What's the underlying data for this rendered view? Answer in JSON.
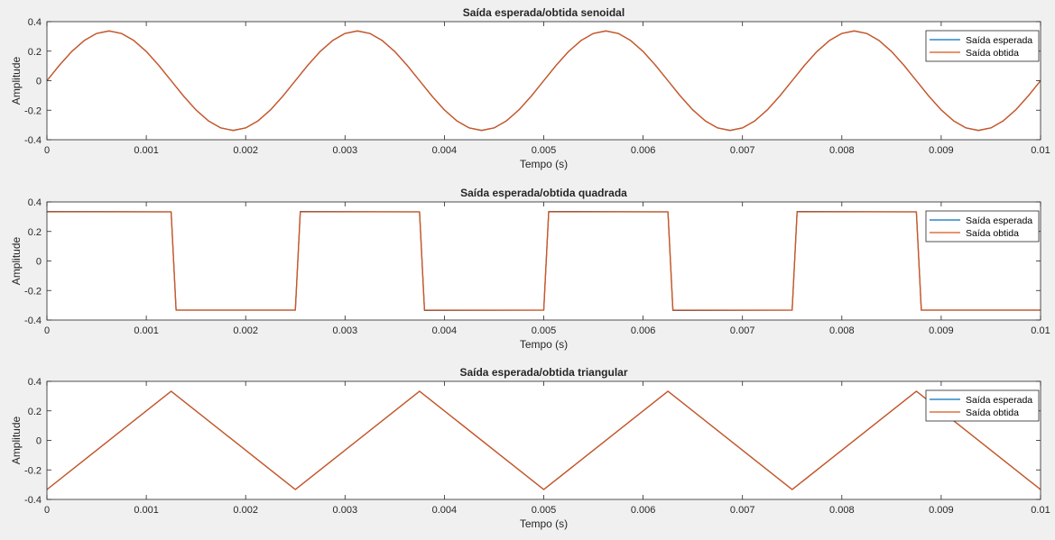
{
  "figure": {
    "background": "#f0f0f0",
    "axes_background": "#ffffff"
  },
  "chart_data": [
    {
      "type": "line",
      "title": "Saída esperada/obtida senoidal",
      "xlabel": "Tempo (s)",
      "ylabel": "Amplitude",
      "xlim": [
        0,
        0.01
      ],
      "ylim": [
        -0.4,
        0.4
      ],
      "xticks": [
        0,
        0.001,
        0.002,
        0.003,
        0.004,
        0.005,
        0.006,
        0.007,
        0.008,
        0.009,
        0.01
      ],
      "xtick_labels": [
        "0",
        "0.001",
        "0.002",
        "0.003",
        "0.004",
        "0.005",
        "0.006",
        "0.007",
        "0.008",
        "0.009",
        "0.01"
      ],
      "yticks": [
        -0.4,
        -0.2,
        0,
        0.2,
        0.4
      ],
      "ytick_labels": [
        "-0.4",
        "-0.2",
        "0",
        "0.2",
        "0.4"
      ],
      "grid": false,
      "legend_position": "top-right",
      "x": [
        0,
        0.000125,
        0.00025,
        0.000375,
        0.0005,
        0.000625,
        0.00075,
        0.000875,
        0.001,
        0.001125,
        0.00125,
        0.001375,
        0.0015,
        0.001625,
        0.00175,
        0.001875,
        0.002,
        0.002125,
        0.00225,
        0.002375,
        0.0025,
        0.002625,
        0.00275,
        0.002875,
        0.003,
        0.003125,
        0.00325,
        0.003375,
        0.0035,
        0.003625,
        0.00375,
        0.003875,
        0.004,
        0.004125,
        0.00425,
        0.004375,
        0.0045,
        0.004625,
        0.00475,
        0.004875,
        0.005,
        0.005125,
        0.00525,
        0.005375,
        0.0055,
        0.005625,
        0.00575,
        0.005875,
        0.006,
        0.006125,
        0.00625,
        0.006375,
        0.0065,
        0.006625,
        0.00675,
        0.006875,
        0.007,
        0.007125,
        0.00725,
        0.007375,
        0.0075,
        0.007625,
        0.00775,
        0.007875,
        0.008,
        0.008125,
        0.00825,
        0.008375,
        0.0085,
        0.008625,
        0.00875,
        0.008875,
        0.009,
        0.009125,
        0.00925,
        0.009375,
        0.0095,
        0.009625,
        0.00975,
        0.009875,
        0.01
      ],
      "series": [
        {
          "name": "Saída esperada",
          "color": "#0072bd",
          "values": [
            0,
            0.104,
            0.198,
            0.272,
            0.32,
            0.337,
            0.32,
            0.272,
            0.198,
            0.104,
            0,
            -0.104,
            -0.198,
            -0.272,
            -0.32,
            -0.337,
            -0.32,
            -0.272,
            -0.198,
            -0.104,
            0,
            0.104,
            0.198,
            0.272,
            0.32,
            0.337,
            0.32,
            0.272,
            0.198,
            0.104,
            0,
            -0.104,
            -0.198,
            -0.272,
            -0.32,
            -0.337,
            -0.32,
            -0.272,
            -0.198,
            -0.104,
            0,
            0.104,
            0.198,
            0.272,
            0.32,
            0.337,
            0.32,
            0.272,
            0.198,
            0.104,
            0,
            -0.104,
            -0.198,
            -0.272,
            -0.32,
            -0.337,
            -0.32,
            -0.272,
            -0.198,
            -0.104,
            0,
            0.104,
            0.198,
            0.272,
            0.32,
            0.337,
            0.32,
            0.272,
            0.198,
            0.104,
            0,
            -0.104,
            -0.198,
            -0.272,
            -0.32,
            -0.337,
            -0.32,
            -0.272,
            -0.198,
            -0.104,
            0
          ]
        },
        {
          "name": "Saída obtida",
          "color": "#d95319",
          "values": [
            0,
            0.104,
            0.198,
            0.272,
            0.32,
            0.337,
            0.32,
            0.272,
            0.198,
            0.104,
            0,
            -0.104,
            -0.198,
            -0.272,
            -0.32,
            -0.337,
            -0.32,
            -0.272,
            -0.198,
            -0.104,
            0,
            0.104,
            0.198,
            0.272,
            0.32,
            0.337,
            0.32,
            0.272,
            0.198,
            0.104,
            0,
            -0.104,
            -0.198,
            -0.272,
            -0.32,
            -0.337,
            -0.32,
            -0.272,
            -0.198,
            -0.104,
            0,
            0.104,
            0.198,
            0.272,
            0.32,
            0.337,
            0.32,
            0.272,
            0.198,
            0.104,
            0,
            -0.104,
            -0.198,
            -0.272,
            -0.32,
            -0.337,
            -0.32,
            -0.272,
            -0.198,
            -0.104,
            0,
            0.104,
            0.198,
            0.272,
            0.32,
            0.337,
            0.32,
            0.272,
            0.198,
            0.104,
            0,
            -0.104,
            -0.198,
            -0.272,
            -0.32,
            -0.337,
            -0.32,
            -0.272,
            -0.198,
            -0.104,
            0
          ]
        }
      ]
    },
    {
      "type": "line",
      "title": "Saída esperada/obtida quadrada",
      "xlabel": "Tempo (s)",
      "ylabel": "Amplitude",
      "xlim": [
        0,
        0.01
      ],
      "ylim": [
        -0.4,
        0.4
      ],
      "xticks": [
        0,
        0.001,
        0.002,
        0.003,
        0.004,
        0.005,
        0.006,
        0.007,
        0.008,
        0.009,
        0.01
      ],
      "xtick_labels": [
        "0",
        "0.001",
        "0.002",
        "0.003",
        "0.004",
        "0.005",
        "0.006",
        "0.007",
        "0.008",
        "0.009",
        "0.01"
      ],
      "yticks": [
        -0.4,
        -0.2,
        0,
        0.2,
        0.4
      ],
      "ytick_labels": [
        "-0.4",
        "-0.2",
        "0",
        "0.2",
        "0.4"
      ],
      "grid": false,
      "legend_position": "top-right",
      "x": [
        0,
        0.00125,
        0.0013,
        0.0025,
        0.00255,
        0.00375,
        0.0038,
        0.005,
        0.00505,
        0.00625,
        0.0063,
        0.0075,
        0.00755,
        0.00875,
        0.0088,
        0.01
      ],
      "series": [
        {
          "name": "Saída esperada",
          "color": "#0072bd",
          "values": [
            0.335,
            0.333,
            -0.333,
            -0.333,
            0.335,
            0.333,
            -0.335,
            -0.333,
            0.335,
            0.333,
            -0.335,
            -0.333,
            0.335,
            0.333,
            -0.333,
            -0.333
          ]
        },
        {
          "name": "Saída obtida",
          "color": "#d95319",
          "values": [
            0.333,
            0.333,
            -0.333,
            -0.333,
            0.333,
            0.333,
            -0.333,
            -0.333,
            0.333,
            0.333,
            -0.333,
            -0.333,
            0.333,
            0.333,
            -0.333,
            -0.333
          ]
        }
      ]
    },
    {
      "type": "line",
      "title": "Saída esperada/obtida triangular",
      "xlabel": "Tempo (s)",
      "ylabel": "Amplitude",
      "xlim": [
        0,
        0.01
      ],
      "ylim": [
        -0.4,
        0.4
      ],
      "xticks": [
        0,
        0.001,
        0.002,
        0.003,
        0.004,
        0.005,
        0.006,
        0.007,
        0.008,
        0.009,
        0.01
      ],
      "xtick_labels": [
        "0",
        "0.001",
        "0.002",
        "0.003",
        "0.004",
        "0.005",
        "0.006",
        "0.007",
        "0.008",
        "0.009",
        "0.01"
      ],
      "yticks": [
        -0.4,
        -0.2,
        0,
        0.2,
        0.4
      ],
      "ytick_labels": [
        "-0.4",
        "-0.2",
        "0",
        "0.2",
        "0.4"
      ],
      "grid": false,
      "legend_position": "top-right",
      "x": [
        0,
        0.00125,
        0.0025,
        0.00375,
        0.005,
        0.00625,
        0.0075,
        0.00875,
        0.01
      ],
      "series": [
        {
          "name": "Saída esperada",
          "color": "#0072bd",
          "values": [
            -0.333,
            0.333,
            -0.333,
            0.333,
            -0.333,
            0.333,
            -0.333,
            0.333,
            -0.333
          ]
        },
        {
          "name": "Saída obtida",
          "color": "#d95319",
          "values": [
            -0.333,
            0.333,
            -0.333,
            0.333,
            -0.333,
            0.333,
            -0.333,
            0.333,
            -0.333
          ]
        }
      ]
    }
  ]
}
